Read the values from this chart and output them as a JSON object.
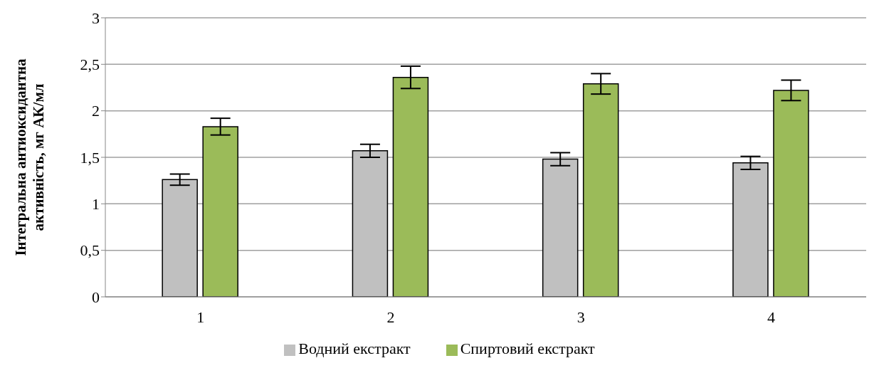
{
  "chart_data": {
    "type": "bar",
    "ylabel": "Інтегральна антиоксидантна активність, мг АК/мл",
    "categories": [
      "1",
      "2",
      "3",
      "4"
    ],
    "series": [
      {
        "name": "Водний екстракт",
        "color": "#c0c0c0",
        "values": [
          1.26,
          1.57,
          1.48,
          1.44
        ],
        "errors": [
          0.06,
          0.07,
          0.07,
          0.07
        ]
      },
      {
        "name": "Спиртовий екстракт",
        "color": "#9bbb59",
        "values": [
          1.83,
          2.36,
          2.29,
          2.22
        ],
        "errors": [
          0.09,
          0.12,
          0.11,
          0.11
        ]
      }
    ],
    "ylim": [
      0,
      3
    ],
    "yticks": [
      0,
      {
        "value": 0.5,
        "label": "0,5"
      },
      1,
      {
        "value": 1.5,
        "label": "1,5"
      },
      2,
      {
        "value": 2.5,
        "label": "2,5"
      },
      3
    ],
    "grid": "y",
    "legend": "bottom"
  }
}
